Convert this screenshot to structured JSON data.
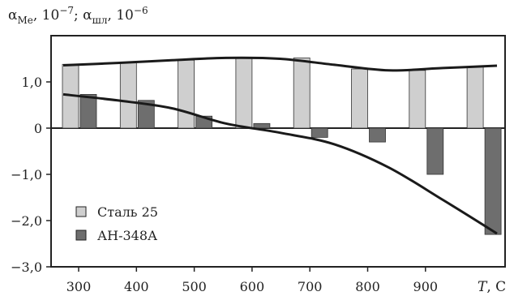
{
  "chart_data": {
    "type": "bar",
    "ylabel_parts": {
      "sym1": "α",
      "sub1": "Me",
      "mid": ", 10",
      "exp1": "−7",
      "sep": "; ",
      "sym2": "α",
      "sub2": "шл",
      "mid2": ", 10",
      "exp2": "−6"
    },
    "xlabel_symbol": "T",
    "xlabel_unit": ", C",
    "categories": [
      "300",
      "400",
      "500",
      "600",
      "700",
      "800",
      "900",
      ""
    ],
    "x_ticks": [
      "300",
      "400",
      "500",
      "600",
      "700",
      "800",
      "900"
    ],
    "y_ticks": [
      "1,0",
      "0",
      "−1,0",
      "−2,0",
      "−3,0"
    ],
    "y_tick_values": [
      1,
      0,
      -1,
      -2,
      -3
    ],
    "ylim": [
      -3,
      1.7
    ],
    "series": [
      {
        "name": "Сталь 25",
        "values": [
          1.38,
          1.42,
          1.47,
          1.52,
          1.52,
          1.28,
          1.25,
          1.33
        ],
        "color": "#cfcfcf",
        "trend": [
          1.36,
          1.41,
          1.47,
          1.52,
          1.5,
          1.37,
          1.25,
          1.3,
          1.35
        ]
      },
      {
        "name": "АН-348А",
        "values": [
          0.73,
          0.6,
          0.26,
          0.1,
          -0.2,
          -0.3,
          -1.0,
          -2.3
        ],
        "color": "#6e6e6e",
        "trend": [
          0.73,
          0.6,
          0.43,
          0.1,
          -0.1,
          -0.35,
          -0.85,
          -1.55,
          -2.28
        ]
      }
    ],
    "legend_position": "bottom-left",
    "grid": false
  }
}
